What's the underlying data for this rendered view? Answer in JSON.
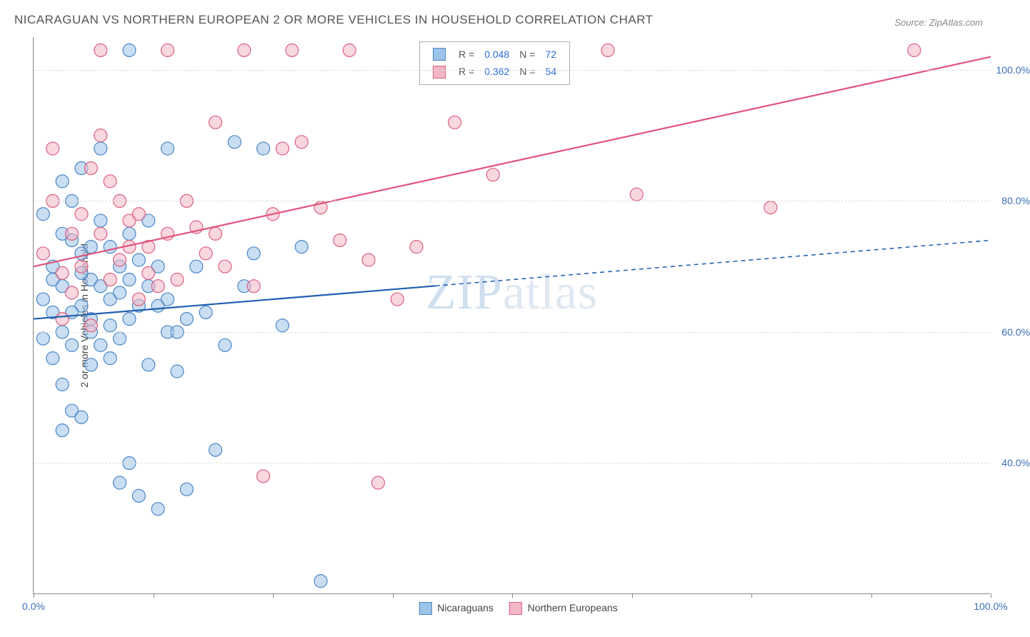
{
  "title": "NICARAGUAN VS NORTHERN EUROPEAN 2 OR MORE VEHICLES IN HOUSEHOLD CORRELATION CHART",
  "source": "Source: ZipAtlas.com",
  "y_axis_title": "2 or more Vehicles in Household",
  "watermark": {
    "part1": "ZIP",
    "part2": "atlas"
  },
  "chart": {
    "type": "scatter",
    "xlim": [
      0,
      100
    ],
    "ylim": [
      20,
      105
    ],
    "x_ticks": [
      0,
      12.5,
      25,
      37.5,
      50,
      62.5,
      75,
      87.5,
      100
    ],
    "x_tick_labels": {
      "0": "0.0%",
      "100": "100.0%"
    },
    "x_tick_label_color": "#3b6fb5",
    "y_gridlines": [
      40,
      60,
      80,
      100
    ],
    "y_tick_labels": {
      "40": "40.0%",
      "60": "60.0%",
      "80": "80.0%",
      "100": "100.0%"
    },
    "y_tick_label_color": "#3b6fb5",
    "grid_color": "#dddddd",
    "background_color": "#ffffff",
    "point_radius": 9,
    "point_opacity": 0.55,
    "series": [
      {
        "name": "Nicaraguans",
        "fill_color": "#9cc3e8",
        "stroke_color": "#4a86c7",
        "line_color": "#1f5fb0",
        "line_width": 2.2,
        "trend": {
          "x1": 0,
          "y1": 62,
          "x2": 100,
          "y2": 74,
          "solid_until_x": 42
        },
        "R": "0.048",
        "N": "72",
        "points": [
          [
            10,
            103
          ],
          [
            1,
            78
          ],
          [
            2,
            70
          ],
          [
            3,
            67
          ],
          [
            3,
            60
          ],
          [
            4,
            58
          ],
          [
            5,
            72
          ],
          [
            5,
            64
          ],
          [
            4,
            74
          ],
          [
            6,
            68
          ],
          [
            6,
            60
          ],
          [
            7,
            88
          ],
          [
            8,
            73
          ],
          [
            8,
            65
          ],
          [
            9,
            59
          ],
          [
            10,
            62
          ],
          [
            10,
            40
          ],
          [
            11,
            71
          ],
          [
            12,
            55
          ],
          [
            12,
            77
          ],
          [
            13,
            64
          ],
          [
            14,
            60
          ],
          [
            14,
            88
          ],
          [
            15,
            54
          ],
          [
            16,
            36
          ],
          [
            17,
            70
          ],
          [
            18,
            63
          ],
          [
            19,
            42
          ],
          [
            20,
            58
          ],
          [
            21,
            89
          ],
          [
            22,
            67
          ],
          [
            23,
            72
          ],
          [
            24,
            88
          ],
          [
            26,
            61
          ],
          [
            28,
            73
          ],
          [
            4,
            48
          ],
          [
            2,
            56
          ],
          [
            3,
            52
          ],
          [
            5,
            47
          ],
          [
            6,
            55
          ],
          [
            7,
            77
          ],
          [
            3,
            83
          ],
          [
            1,
            65
          ],
          [
            2,
            63
          ],
          [
            1,
            59
          ],
          [
            2,
            68
          ],
          [
            3,
            75
          ],
          [
            4,
            80
          ],
          [
            5,
            85
          ],
          [
            9,
            37
          ],
          [
            11,
            35
          ],
          [
            13,
            33
          ],
          [
            30,
            22
          ],
          [
            8,
            56
          ],
          [
            6,
            62
          ],
          [
            7,
            67
          ],
          [
            9,
            70
          ],
          [
            10,
            75
          ],
          [
            3,
            45
          ],
          [
            4,
            63
          ],
          [
            5,
            69
          ],
          [
            6,
            73
          ],
          [
            7,
            58
          ],
          [
            8,
            61
          ],
          [
            9,
            66
          ],
          [
            10,
            68
          ],
          [
            11,
            64
          ],
          [
            12,
            67
          ],
          [
            13,
            70
          ],
          [
            14,
            65
          ],
          [
            15,
            60
          ],
          [
            16,
            62
          ]
        ]
      },
      {
        "name": "Northern Europeans",
        "fill_color": "#f2b6c4",
        "stroke_color": "#db5f84",
        "line_color": "#e0537c",
        "line_width": 2.2,
        "trend": {
          "x1": 0,
          "y1": 70,
          "x2": 100,
          "y2": 102,
          "solid_until_x": 100
        },
        "R": "0.362",
        "N": "54",
        "points": [
          [
            1,
            72
          ],
          [
            2,
            80
          ],
          [
            3,
            69
          ],
          [
            4,
            75
          ],
          [
            5,
            78
          ],
          [
            6,
            85
          ],
          [
            7,
            90
          ],
          [
            8,
            83
          ],
          [
            9,
            71
          ],
          [
            10,
            77
          ],
          [
            11,
            65
          ],
          [
            12,
            73
          ],
          [
            14,
            103
          ],
          [
            15,
            68
          ],
          [
            16,
            80
          ],
          [
            17,
            76
          ],
          [
            18,
            72
          ],
          [
            19,
            92
          ],
          [
            20,
            70
          ],
          [
            22,
            103
          ],
          [
            23,
            67
          ],
          [
            24,
            38
          ],
          [
            25,
            78
          ],
          [
            27,
            103
          ],
          [
            28,
            89
          ],
          [
            30,
            79
          ],
          [
            32,
            74
          ],
          [
            33,
            103
          ],
          [
            35,
            71
          ],
          [
            36,
            37
          ],
          [
            38,
            65
          ],
          [
            40,
            73
          ],
          [
            44,
            92
          ],
          [
            48,
            84
          ],
          [
            60,
            103
          ],
          [
            63,
            81
          ],
          [
            77,
            79
          ],
          [
            92,
            103
          ],
          [
            3,
            62
          ],
          [
            4,
            66
          ],
          [
            5,
            70
          ],
          [
            6,
            61
          ],
          [
            7,
            75
          ],
          [
            8,
            68
          ],
          [
            9,
            80
          ],
          [
            10,
            73
          ],
          [
            11,
            78
          ],
          [
            12,
            69
          ],
          [
            13,
            67
          ],
          [
            14,
            75
          ],
          [
            2,
            88
          ],
          [
            26,
            88
          ],
          [
            7,
            103
          ],
          [
            19,
            75
          ]
        ]
      }
    ]
  },
  "stats_legend": {
    "label_R": "R =",
    "label_N": "N =",
    "value_color": "#2b6fd4",
    "text_color": "#555555"
  },
  "bottom_legend": {
    "items": [
      {
        "label": "Nicaraguans",
        "fill": "#9cc3e8",
        "stroke": "#4a86c7"
      },
      {
        "label": "Northern Europeans",
        "fill": "#f2b6c4",
        "stroke": "#db5f84"
      }
    ]
  }
}
